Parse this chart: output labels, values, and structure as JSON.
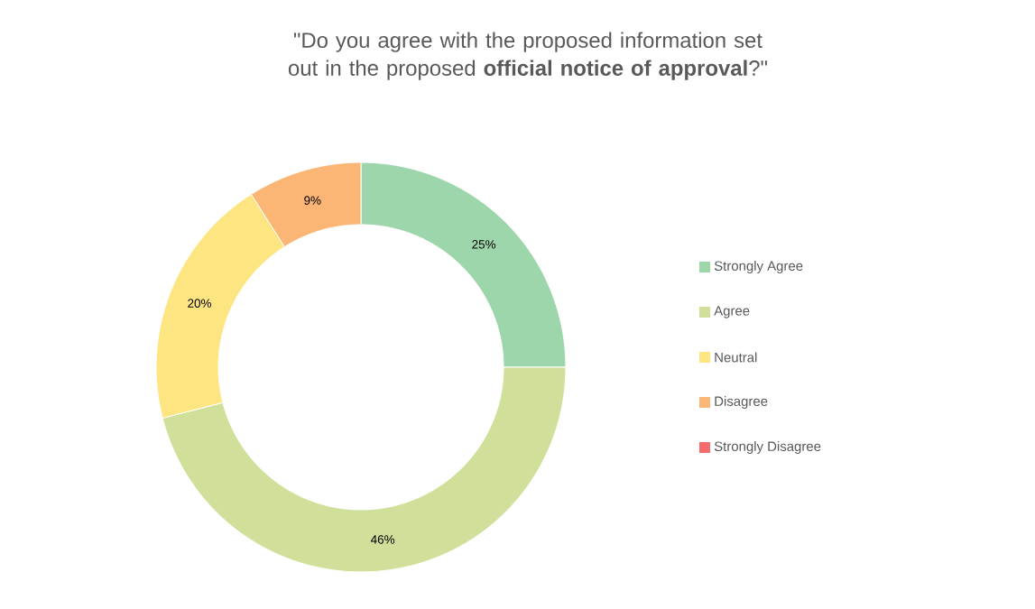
{
  "chart_data": {
    "type": "donut",
    "title": "\"Do you agree with the proposed information set out in the proposed **official notice of approval**?\"",
    "categories": [
      "Strongly Agree",
      "Agree",
      "Neutral",
      "Disagree",
      "Strongly Disagree"
    ],
    "values": [
      25,
      46,
      20,
      9,
      0
    ],
    "value_labels": [
      "25%",
      "46%",
      "20%",
      "9%",
      null
    ],
    "colors": [
      "#9dd6ab",
      "#d0e09a",
      "#fde681",
      "#fbb574",
      "#f46b6b"
    ],
    "legend": "right"
  }
}
